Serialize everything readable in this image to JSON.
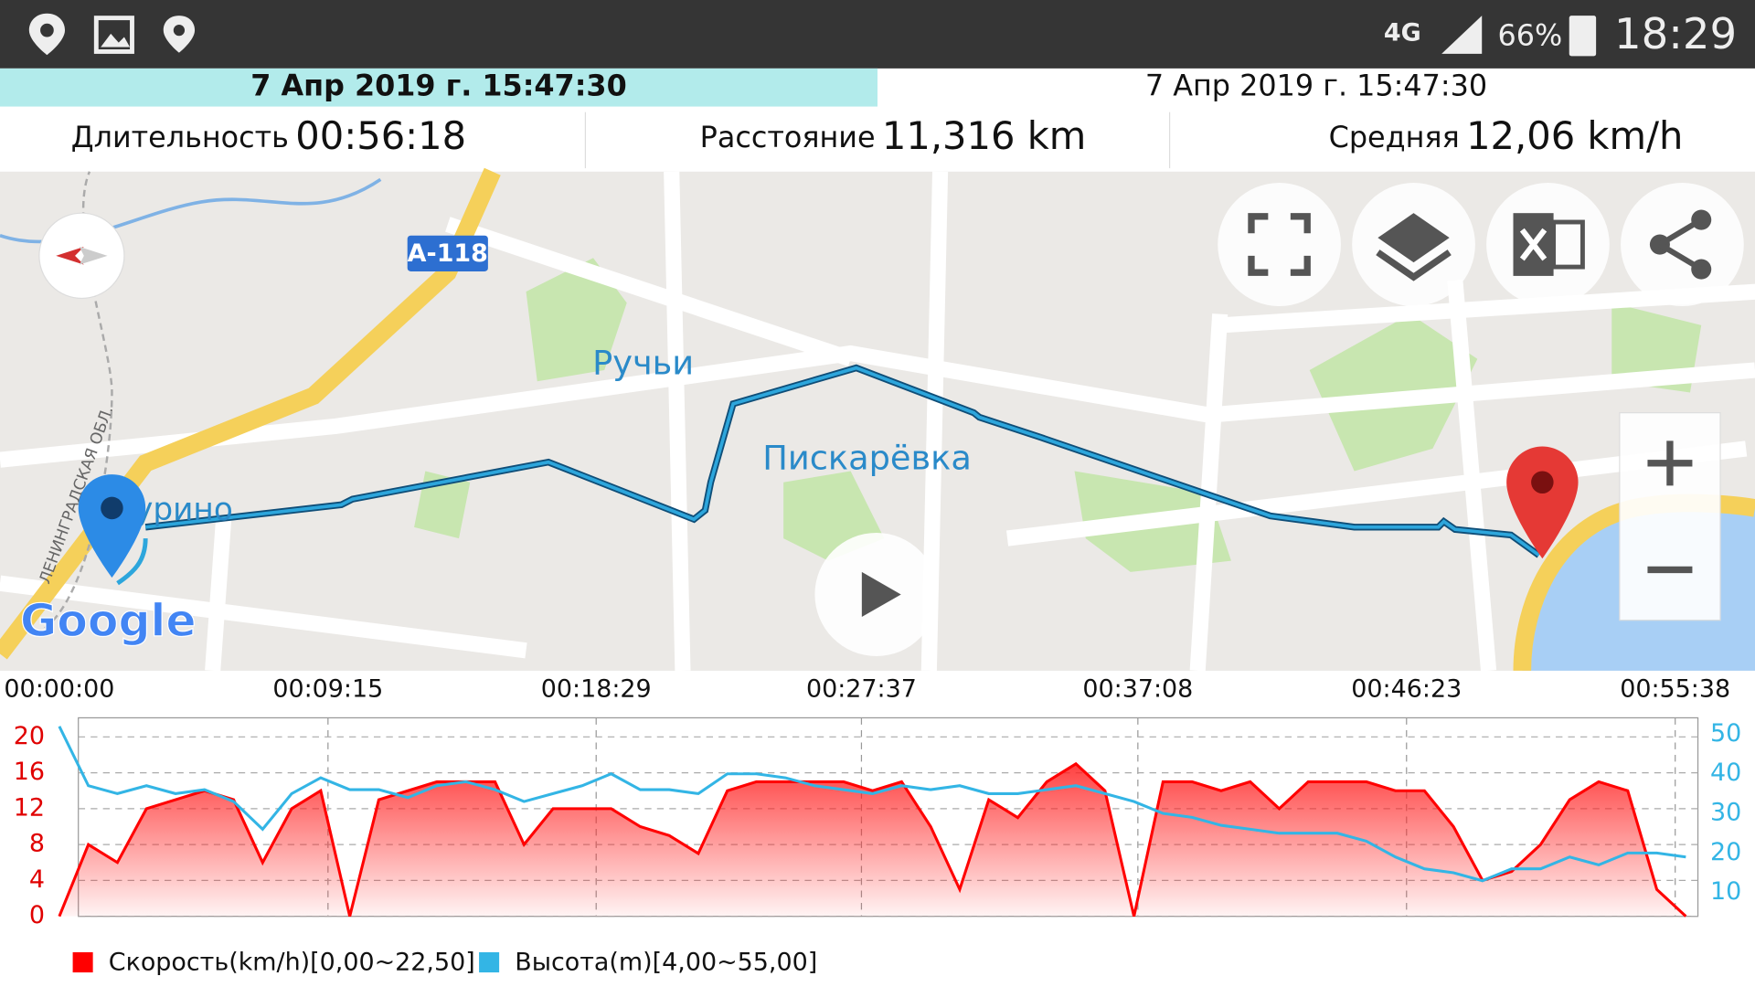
{
  "status_bar": {
    "network": "4G",
    "battery": "66%",
    "time": "18:29"
  },
  "header": {
    "start": "7 Апр 2019 г. 15:47:30",
    "end": "7 Апр 2019 г. 15:47:30"
  },
  "stats": [
    {
      "label": "Длительность",
      "value": "00:56:18"
    },
    {
      "label": "Расстояние",
      "value": "11,316 km"
    },
    {
      "label": "Средняя",
      "value": "12,06 km/h"
    }
  ],
  "map": {
    "road_sign": "A-118",
    "places": [
      "Ручьи",
      "Пискарёвка",
      "Мурино"
    ],
    "region": "ЛЕНИНГРАДСКАЯ ОБЛ.",
    "logo": "Google"
  },
  "chart_data": {
    "type": "line",
    "x": [
      0,
      60,
      120,
      180,
      240,
      300,
      360,
      420,
      480,
      540,
      600,
      660,
      720,
      780,
      840,
      900,
      960,
      1020,
      1080,
      1140,
      1200,
      1260,
      1320,
      1380,
      1440,
      1500,
      1560,
      1620,
      1680,
      1740,
      1800,
      1860,
      1920,
      1980,
      2040,
      2100,
      2160,
      2220,
      2280,
      2340,
      2400,
      2460,
      2520,
      2580,
      2640,
      2700,
      2760,
      2820,
      2880,
      2940,
      3000,
      3060,
      3120,
      3180,
      3240,
      3300,
      3360
    ],
    "series": [
      {
        "name": "Скорость(km/h)[0,00~22,50]",
        "color": "#ff0000",
        "values": [
          0,
          8,
          6,
          12,
          13,
          14,
          13,
          6,
          12,
          14,
          0,
          13,
          14,
          15,
          15,
          15,
          8,
          12,
          12,
          12,
          10,
          9,
          7,
          14,
          15,
          15,
          15,
          15,
          14,
          15,
          10,
          3,
          13,
          11,
          15,
          17,
          14,
          0,
          15,
          15,
          14,
          15,
          12,
          15,
          15,
          15,
          14,
          14,
          10,
          4,
          5,
          8,
          13,
          15,
          14,
          3,
          0
        ]
      },
      {
        "name": "Высота(m)[4,00~55,00]",
        "color": "#33b5e5",
        "axis": "y2",
        "values": [
          52,
          37,
          35,
          37,
          35,
          36,
          33,
          26,
          35,
          39,
          36,
          36,
          34,
          37,
          38,
          36,
          33,
          35,
          37,
          40,
          36,
          36,
          35,
          40,
          40,
          39,
          37,
          36,
          35,
          37,
          36,
          37,
          35,
          35,
          36,
          37,
          35,
          33,
          30,
          29,
          27,
          26,
          25,
          25,
          25,
          23,
          19,
          16,
          15,
          13,
          16,
          16,
          19,
          17,
          20,
          20,
          19
        ]
      }
    ],
    "xlim": [
      0,
      3378
    ],
    "xticks": [
      {
        "value": 0,
        "label": "00:00:00"
      },
      {
        "value": 555,
        "label": "00:09:15"
      },
      {
        "value": 1109,
        "label": "00:18:29"
      },
      {
        "value": 1657,
        "label": "00:27:37"
      },
      {
        "value": 2228,
        "label": "00:37:08"
      },
      {
        "value": 2783,
        "label": "00:46:23"
      },
      {
        "value": 3338,
        "label": "00:55:38"
      }
    ],
    "ylim": [
      0,
      22.5
    ],
    "yticks": [
      0,
      4,
      8,
      12,
      16,
      20
    ],
    "y2lim": [
      4,
      55
    ],
    "y2ticks": [
      10,
      20,
      30,
      40,
      50
    ],
    "grid": true
  }
}
